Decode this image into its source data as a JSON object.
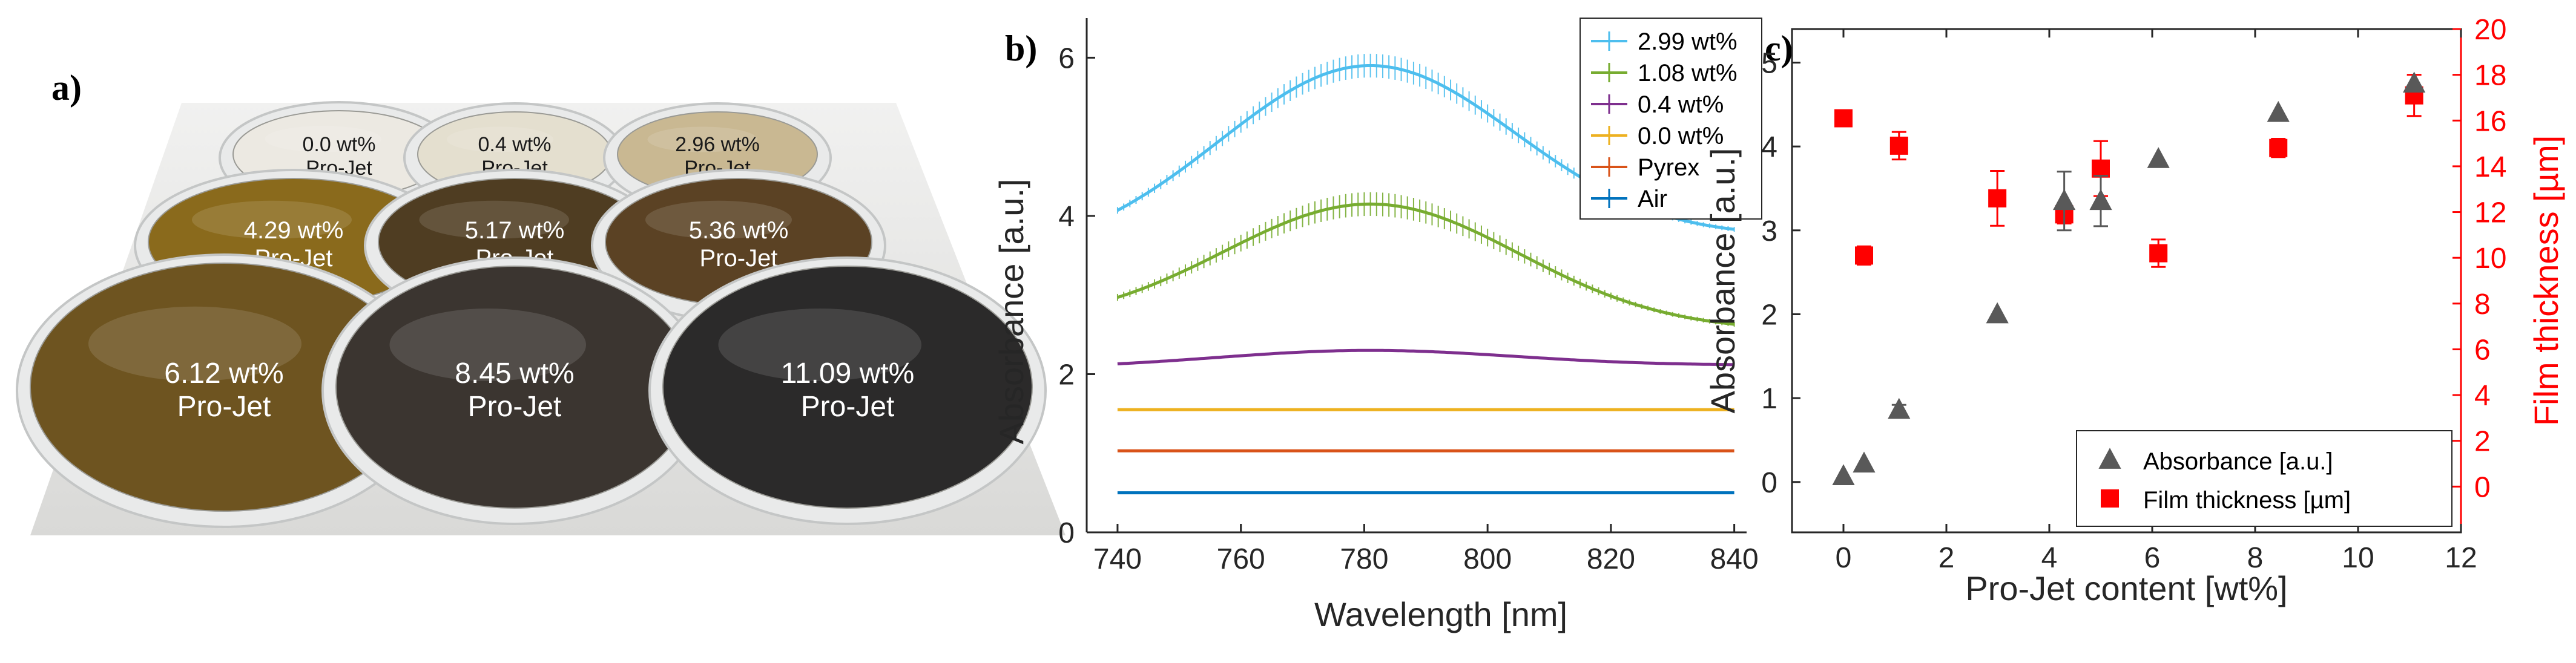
{
  "panel_labels": {
    "a": "a)",
    "b": "b)",
    "c": "c)"
  },
  "wafers": [
    {
      "line1": "0.0 wt%",
      "line2": "Pro-Jet",
      "color": "#ece9e2",
      "dark_text": true
    },
    {
      "line1": "0.4 wt%",
      "line2": "Pro-Jet",
      "color": "#e4dfcf",
      "dark_text": true
    },
    {
      "line1": "2.96 wt%",
      "line2": "Pro-Jet",
      "color": "#c9b892",
      "dark_text": true
    },
    {
      "line1": "4.29 wt%",
      "line2": "Pro-Jet",
      "color": "#8a6a1c",
      "dark_text": false
    },
    {
      "line1": "5.17 wt%",
      "line2": "Pro-Jet",
      "color": "#4f3d22",
      "dark_text": false
    },
    {
      "line1": "5.36 wt%",
      "line2": "Pro-Jet",
      "color": "#5b4224",
      "dark_text": false
    },
    {
      "line1": "6.12 wt%",
      "line2": "Pro-Jet",
      "color": "#6e5420",
      "dark_text": false
    },
    {
      "line1": "8.45 wt%",
      "line2": "Pro-Jet",
      "color": "#3b3530",
      "dark_text": false
    },
    {
      "line1": "11.09 wt%",
      "line2": "Pro-Jet",
      "color": "#2b2a2a",
      "dark_text": false
    }
  ],
  "chart_data": [
    {
      "type": "line",
      "xlabel": "Wavelength [nm]",
      "ylabel": "Absorbance [a.u.]",
      "xlim": [
        735,
        842
      ],
      "ylim": [
        0,
        6.5
      ],
      "xticks": [
        740,
        760,
        780,
        800,
        820,
        840
      ],
      "yticks": [
        0,
        2,
        4,
        6
      ],
      "legend_position": "top-right",
      "series": [
        {
          "name": "2.99 wt%",
          "color": "#4dbeee",
          "shape": "gaussian",
          "x_range": [
            740,
            840
          ],
          "baseline": 3.5,
          "peak_x": 781,
          "peak": 5.9,
          "edge": 4.07,
          "right_edge": 3.83,
          "error_bars": true
        },
        {
          "name": "1.08 wt%",
          "color": "#77ac30",
          "shape": "gaussian",
          "x_range": [
            740,
            840
          ],
          "baseline": 2.45,
          "peak_x": 781,
          "peak": 4.15,
          "edge": 2.97,
          "right_edge": 2.63,
          "error_bars": true
        },
        {
          "name": "0.4 wt%",
          "color": "#7e2f8e",
          "shape": "gaussian",
          "x_range": [
            740,
            840
          ],
          "baseline": 2.05,
          "peak_x": 781,
          "peak": 2.3,
          "edge": 2.13,
          "right_edge": 2.12,
          "error_bars": false
        },
        {
          "name": "0.0 wt%",
          "color": "#edb120",
          "shape": "flat",
          "x_range": [
            740,
            840
          ],
          "value": 1.55
        },
        {
          "name": "Pyrex",
          "color": "#d95319",
          "shape": "flat",
          "x_range": [
            740,
            840
          ],
          "value": 1.03
        },
        {
          "name": "Air",
          "color": "#0072bd",
          "shape": "flat",
          "x_range": [
            740,
            840
          ],
          "value": 0.5
        }
      ]
    },
    {
      "type": "scatter",
      "xlabel": "Pro-Jet content [wt%]",
      "ylabel": "Absorbance [a.u.]",
      "y2label": "Film thickness [µm]",
      "xlim": [
        -1,
        12
      ],
      "ylim": [
        -0.6,
        5.4
      ],
      "y2lim": [
        -2,
        20
      ],
      "xticks": [
        0,
        2,
        4,
        6,
        8,
        10,
        12
      ],
      "yticks": [
        0,
        1,
        2,
        3,
        4,
        5
      ],
      "y2ticks": [
        0,
        2,
        4,
        6,
        8,
        10,
        12,
        14,
        16,
        18,
        20
      ],
      "legend_position": "bottom-right",
      "series": [
        {
          "name": "Absorbance [a.u.]",
          "axis": "left",
          "marker": "triangle",
          "color": "#595959",
          "points": [
            {
              "x": 0.0,
              "y": 0.07
            },
            {
              "x": 0.4,
              "y": 0.22
            },
            {
              "x": 1.08,
              "y": 0.86,
              "err": 0.06
            },
            {
              "x": 2.99,
              "y": 2.0
            },
            {
              "x": 4.29,
              "y": 3.35,
              "err": 0.35
            },
            {
              "x": 5.0,
              "y": 3.35,
              "err": 0.3
            },
            {
              "x": 6.12,
              "y": 3.85
            },
            {
              "x": 8.45,
              "y": 4.4
            },
            {
              "x": 11.09,
              "y": 4.75
            }
          ]
        },
        {
          "name": "Film thickness [µm]",
          "axis": "right",
          "marker": "square",
          "color": "#ff0000",
          "points": [
            {
              "x": 0.0,
              "y": 16.1
            },
            {
              "x": 0.4,
              "y": 10.1,
              "err": 0.4
            },
            {
              "x": 1.08,
              "y": 14.9,
              "err": 0.6
            },
            {
              "x": 2.99,
              "y": 12.6,
              "err": 1.2
            },
            {
              "x": 4.29,
              "y": 11.9,
              "err": 0.4
            },
            {
              "x": 5.0,
              "y": 13.9,
              "err": 1.2
            },
            {
              "x": 6.12,
              "y": 10.2,
              "err": 0.6
            },
            {
              "x": 8.45,
              "y": 14.8,
              "err": 0.4
            },
            {
              "x": 11.09,
              "y": 17.1,
              "err": 0.9
            }
          ]
        }
      ]
    }
  ]
}
